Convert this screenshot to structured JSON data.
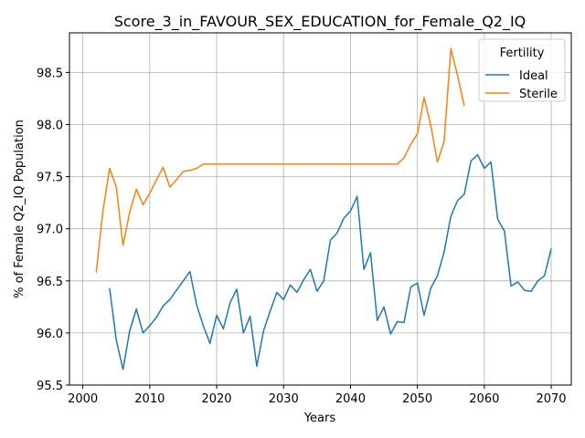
{
  "chart_data": {
    "type": "line",
    "title": "Score_3_in_FAVOUR_SEX_EDUCATION_for_Female_Q2_IQ",
    "xlabel": "Years",
    "ylabel": "% of Female Q2_IQ Population",
    "xlim": [
      1998,
      2073
    ],
    "ylim": [
      95.5,
      98.88
    ],
    "xticks": [
      2000,
      2010,
      2020,
      2030,
      2040,
      2050,
      2060,
      2070
    ],
    "yticks": [
      95.5,
      96.0,
      96.5,
      97.0,
      97.5,
      98.0,
      98.5
    ],
    "grid": true,
    "legend": {
      "title": "Fertility",
      "position": "top-right"
    },
    "series": [
      {
        "name": "Ideal",
        "color": "#1f77b4",
        "x": [
          2004,
          2005,
          2006,
          2007,
          2008,
          2009,
          2010,
          2011,
          2012,
          2013,
          2014,
          2015,
          2016,
          2017,
          2018,
          2019,
          2020,
          2021,
          2022,
          2023,
          2024,
          2025,
          2026,
          2027,
          2028,
          2029,
          2030,
          2031,
          2032,
          2033,
          2034,
          2035,
          2036,
          2037,
          2038,
          2039,
          2040,
          2041,
          2042,
          2043,
          2044,
          2045,
          2046,
          2047,
          2048,
          2049,
          2050,
          2051,
          2052,
          2053,
          2054,
          2055,
          2056,
          2057,
          2058,
          2059,
          2060,
          2061,
          2062,
          2063,
          2064,
          2065,
          2066,
          2067,
          2068,
          2069,
          2070
        ],
        "y": [
          96.43,
          95.93,
          95.65,
          96.02,
          96.23,
          96.0,
          96.07,
          96.15,
          96.26,
          96.32,
          96.41,
          96.5,
          96.59,
          96.27,
          96.07,
          95.9,
          96.17,
          96.04,
          96.29,
          96.42,
          96.0,
          96.16,
          95.68,
          96.02,
          96.21,
          96.39,
          96.32,
          96.46,
          96.39,
          96.51,
          96.61,
          96.4,
          96.5,
          96.89,
          96.96,
          97.1,
          97.17,
          97.31,
          96.61,
          96.77,
          96.12,
          96.25,
          95.99,
          96.11,
          96.1,
          96.44,
          96.48,
          96.17,
          96.43,
          96.55,
          96.78,
          97.12,
          97.27,
          97.33,
          97.65,
          97.71,
          97.58,
          97.64,
          97.09,
          96.98,
          96.45,
          96.49,
          96.41,
          96.4,
          96.5,
          96.55,
          96.81
        ]
      },
      {
        "name": "Sterile",
        "color": "#ff7f0e",
        "x": [
          2002,
          2003,
          2004,
          2005,
          2006,
          2007,
          2008,
          2009,
          2010,
          2011,
          2012,
          2013,
          2014,
          2015,
          2016,
          2017,
          2018,
          2019,
          2020,
          2021,
          2022,
          2023,
          2024,
          2025,
          2026,
          2027,
          2028,
          2029,
          2030,
          2031,
          2032,
          2033,
          2034,
          2035,
          2036,
          2037,
          2038,
          2039,
          2040,
          2041,
          2042,
          2043,
          2044,
          2045,
          2046,
          2047,
          2048,
          2049,
          2050,
          2051,
          2052,
          2053,
          2054,
          2055,
          2056,
          2057
        ],
        "y": [
          96.58,
          97.17,
          97.58,
          97.4,
          96.84,
          97.16,
          97.38,
          97.23,
          97.34,
          97.47,
          97.59,
          97.4,
          97.47,
          97.55,
          97.56,
          97.58,
          97.62,
          97.62,
          97.62,
          97.62,
          97.62,
          97.62,
          97.62,
          97.62,
          97.62,
          97.62,
          97.62,
          97.62,
          97.62,
          97.62,
          97.62,
          97.62,
          97.62,
          97.62,
          97.62,
          97.62,
          97.62,
          97.62,
          97.62,
          97.62,
          97.62,
          97.62,
          97.62,
          97.62,
          97.62,
          97.62,
          97.68,
          97.81,
          97.91,
          98.26,
          97.99,
          97.64,
          97.84,
          98.73,
          98.47,
          98.18
        ]
      }
    ]
  }
}
